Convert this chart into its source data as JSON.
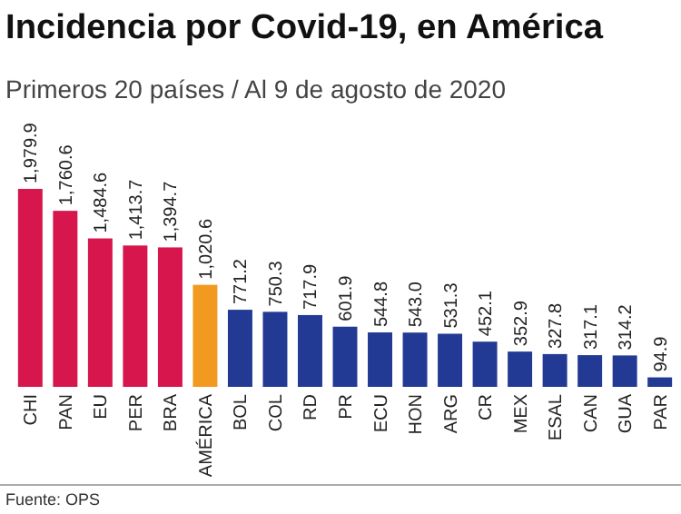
{
  "chart_data": {
    "type": "bar",
    "title": "Incidencia por Covid-19, en América",
    "subtitle": "Primeros 20 países / Al 9 de agosto de 2020",
    "categories": [
      "CHI",
      "PAN",
      "EU",
      "PER",
      "BRA",
      "AMÉRICA",
      "BOL",
      "COL",
      "RD",
      "PR",
      "ECU",
      "HON",
      "ARG",
      "CR",
      "MEX",
      "ESAL",
      "CAN",
      "GUA",
      "PAR"
    ],
    "values": [
      1979.9,
      1760.6,
      1484.6,
      1413.7,
      1394.7,
      1020.6,
      771.2,
      750.3,
      717.9,
      601.9,
      544.8,
      543.0,
      531.3,
      452.1,
      352.9,
      327.8,
      317.1,
      314.2,
      94.9
    ],
    "value_labels": [
      "1,979.9",
      "1,760.6",
      "1,484.6",
      "1,413.7",
      "1,394.7",
      "1,020.6",
      "771.2",
      "750.3",
      "717.9",
      "601.9",
      "544.8",
      "543.0",
      "531.3",
      "452.1",
      "352.9",
      "327.8",
      "317.1",
      "314.2",
      "94.9"
    ],
    "colors": [
      "#d6164c",
      "#d6164c",
      "#d6164c",
      "#d6164c",
      "#d6164c",
      "#f29a1f",
      "#233a95",
      "#233a95",
      "#233a95",
      "#233a95",
      "#233a95",
      "#233a95",
      "#233a95",
      "#233a95",
      "#233a95",
      "#233a95",
      "#233a95",
      "#233a95",
      "#233a95"
    ],
    "annotations": [
      "Fuente: OPS"
    ]
  }
}
